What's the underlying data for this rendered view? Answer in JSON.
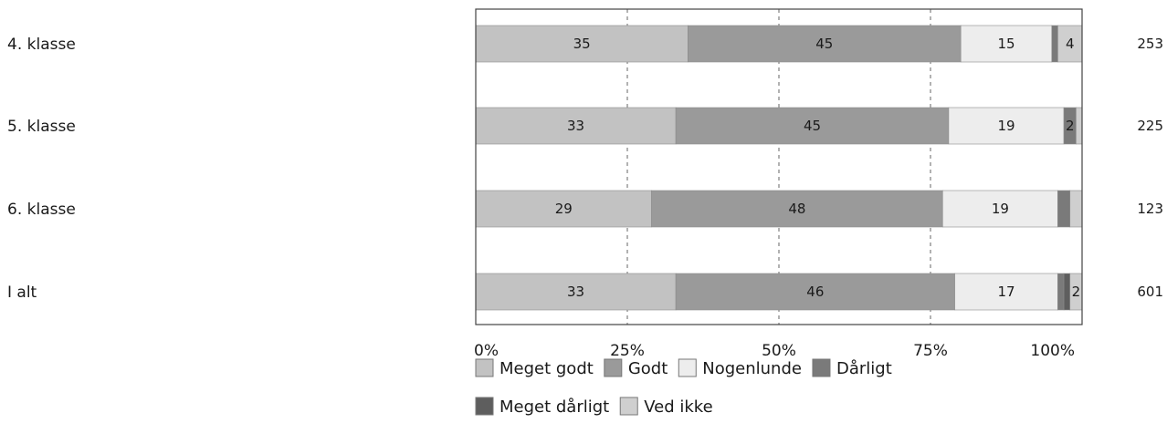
{
  "chart_data": {
    "type": "bar",
    "orientation": "horizontal",
    "stacked": true,
    "title": "",
    "xlabel": "",
    "ylabel": "",
    "xlim": [
      0,
      100
    ],
    "grid": true,
    "legend_position": "bottom",
    "categories": [
      "4. klasse",
      "5. klasse",
      "6. klasse",
      "I alt"
    ],
    "n_values": [
      "253",
      "225",
      "123",
      "601"
    ],
    "x_ticks": [
      "0%",
      "25%",
      "50%",
      "75%",
      "100%"
    ],
    "series": [
      {
        "name": "Meget godt",
        "values": [
          35,
          33,
          29,
          33
        ],
        "labels": [
          "35",
          "33",
          "29",
          "33"
        ],
        "color": "#c2c2c2"
      },
      {
        "name": "Godt",
        "values": [
          45,
          45,
          48,
          46
        ],
        "labels": [
          "45",
          "45",
          "48",
          "46"
        ],
        "color": "#9a9a9a"
      },
      {
        "name": "Nogenlunde",
        "values": [
          15,
          19,
          19,
          17
        ],
        "labels": [
          "15",
          "19",
          "19",
          "17"
        ],
        "color": "#ededed"
      },
      {
        "name": "Dårligt",
        "values": [
          1,
          2,
          2,
          1
        ],
        "labels": [
          "",
          "2",
          "",
          ""
        ],
        "color": "#7a7a7a"
      },
      {
        "name": "Meget dårligt",
        "values": [
          0,
          0,
          0,
          1
        ],
        "labels": [
          "",
          "",
          "",
          ""
        ],
        "color": "#5e5e5e"
      },
      {
        "name": "Ved ikke",
        "values": [
          4,
          1,
          2,
          2
        ],
        "labels": [
          "4",
          "",
          "",
          "2"
        ],
        "color": "#cfcfcf"
      }
    ]
  }
}
